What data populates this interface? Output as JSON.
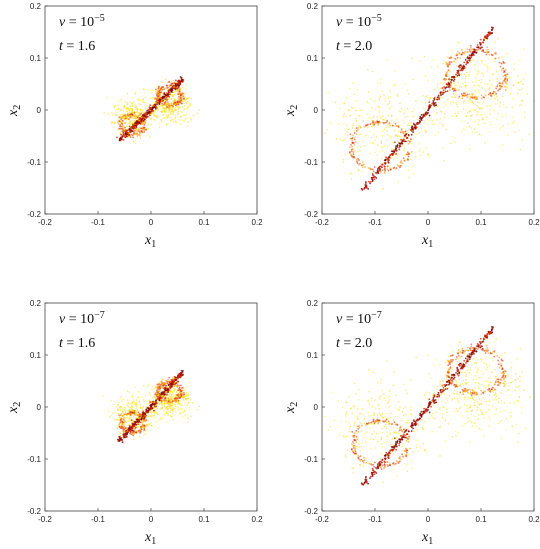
{
  "chart_data": [
    {
      "type": "scatter",
      "xlabel": "x1",
      "ylabel": "x2",
      "annotation_nu": "ν = 10−5",
      "annotation_t": "t = 1.6",
      "nu_base": "10",
      "nu_exp": "−5",
      "t_value": "1.6",
      "xlim": [
        -0.2,
        0.2
      ],
      "ylim": [
        -0.2,
        0.2
      ],
      "x_ticks": [
        "-0.2",
        "-0.1",
        "0",
        "0.1",
        "0.2"
      ],
      "y_ticks": [
        "-0.2",
        "-0.1",
        "0",
        "0.1",
        "0.2"
      ],
      "shape": {
        "tip_x": 0.063,
        "tip_y": 0.062,
        "lobe_width": 0.025,
        "lobe_center": [
          0.035,
          0.028
        ]
      },
      "colors": [
        "#7a0000",
        "#d42000",
        "#ff8a00",
        "#ffd200",
        "#fff200"
      ]
    },
    {
      "type": "scatter",
      "xlabel": "x1",
      "ylabel": "x2",
      "annotation_nu": "ν = 10−5",
      "annotation_t": "t = 2.0",
      "nu_base": "10",
      "nu_exp": "−5",
      "t_value": "2.0",
      "xlim": [
        -0.2,
        0.2
      ],
      "ylim": [
        -0.2,
        0.2
      ],
      "x_ticks": [
        "-0.2",
        "-0.1",
        "0",
        "0.1",
        "0.2"
      ],
      "y_ticks": [
        "-0.2",
        "-0.1",
        "0",
        "0.1",
        "0.2"
      ],
      "shape": {
        "tip_x": 0.13,
        "tip_y": 0.165,
        "lobe_width": 0.062,
        "lobe_center": [
          0.09,
          0.07
        ]
      },
      "colors": [
        "#7a0000",
        "#d42000",
        "#ff8a00",
        "#ffd200",
        "#fff200"
      ]
    },
    {
      "type": "scatter",
      "xlabel": "x1",
      "ylabel": "x2",
      "annotation_nu": "ν = 10−7",
      "annotation_t": "t = 1.6",
      "nu_base": "10",
      "nu_exp": "−7",
      "t_value": "1.6",
      "xlim": [
        -0.2,
        0.2
      ],
      "ylim": [
        -0.2,
        0.2
      ],
      "x_ticks": [
        "-0.2",
        "-0.1",
        "0",
        "0.1",
        "0.2"
      ],
      "y_ticks": [
        "-0.2",
        "-0.1",
        "0",
        "0.1",
        "0.2"
      ],
      "shape": {
        "tip_x": 0.063,
        "tip_y": 0.07,
        "lobe_width": 0.025,
        "lobe_center": [
          0.035,
          0.03
        ]
      },
      "colors": [
        "#7a0000",
        "#d42000",
        "#ff8a00",
        "#ffd200",
        "#fff200"
      ]
    },
    {
      "type": "scatter",
      "xlabel": "x1",
      "ylabel": "x2",
      "annotation_nu": "ν = 10−7",
      "annotation_t": "t = 2.0",
      "nu_base": "10",
      "nu_exp": "−7",
      "t_value": "2.0",
      "xlim": [
        -0.2,
        0.2
      ],
      "ylim": [
        -0.2,
        0.2
      ],
      "x_ticks": [
        "-0.2",
        "-0.1",
        "0",
        "0.1",
        "0.2"
      ],
      "y_ticks": [
        "-0.2",
        "-0.1",
        "0",
        "0.1",
        "0.2"
      ],
      "shape": {
        "tip_x": 0.13,
        "tip_y": 0.16,
        "lobe_width": 0.058,
        "lobe_center": [
          0.09,
          0.07
        ]
      },
      "colors": [
        "#7a0000",
        "#d42000",
        "#ff8a00",
        "#ffd200",
        "#fff200"
      ]
    }
  ]
}
